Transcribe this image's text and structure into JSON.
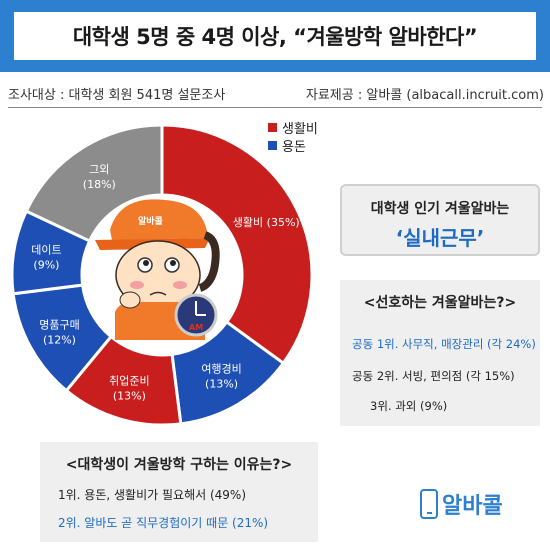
{
  "header": {
    "title": "대학생 5명 중 4명 이상, “겨울방학 알바한다”"
  },
  "subbar": {
    "survey": "조사대상 : 대학생 회원 541명 설문조사",
    "source": "자료제공 : 알바콜 (albacall.incruit.com)"
  },
  "legend": [
    {
      "label": "생활비",
      "color": "#c81e1e"
    },
    {
      "label": "용돈",
      "color": "#1e4fb4"
    }
  ],
  "chart_data": {
    "type": "pie",
    "slices": [
      {
        "label": "생활비",
        "value": 35,
        "color": "#c81e1e",
        "display": "생활비 (35%)"
      },
      {
        "label": "여행경비",
        "value": 13,
        "color": "#1e4fb4",
        "display": "여행경비|(13%)"
      },
      {
        "label": "취업준비",
        "value": 13,
        "color": "#c81e1e",
        "display": "취업준비|(13%)"
      },
      {
        "label": "명품구매",
        "value": 12,
        "color": "#1e4fb4",
        "display": "명품구매|(12%)"
      },
      {
        "label": "데이트",
        "value": 9,
        "color": "#1e4fb4",
        "display": "데이트|(9%)"
      },
      {
        "label": "그외",
        "value": 18,
        "color": "#8c8c8c",
        "display": "그외|(18%)"
      }
    ]
  },
  "popular": {
    "title": "대학생 인기 겨울알바는",
    "answer": "‘실내근무’"
  },
  "preferred": {
    "title": "<선호하는 겨울알바는?>",
    "rows": [
      {
        "text": "공동 1위. 사무직, 매장관리 (각 24%)",
        "color": "#1e6bc4"
      },
      {
        "text": "공동 2위. 서빙, 편의점 (각 15%)",
        "color": "#222222"
      },
      {
        "text": "3위. 과외 (9%)",
        "color": "#222222"
      }
    ]
  },
  "reasons": {
    "title": "<대학생이 겨울방학 구하는 이유는?>",
    "rows": [
      {
        "text": "1위. 용돈, 생활비가 필요해서 (49%)",
        "color": "#222222"
      },
      {
        "text": "2위. 알바도 곧 직무경험이기 때문 (21%)",
        "color": "#1e6bc4"
      }
    ]
  },
  "logo": {
    "text": "알바콜"
  },
  "mascot": {
    "cap_text": "알바콜",
    "clock_text": "AM"
  }
}
